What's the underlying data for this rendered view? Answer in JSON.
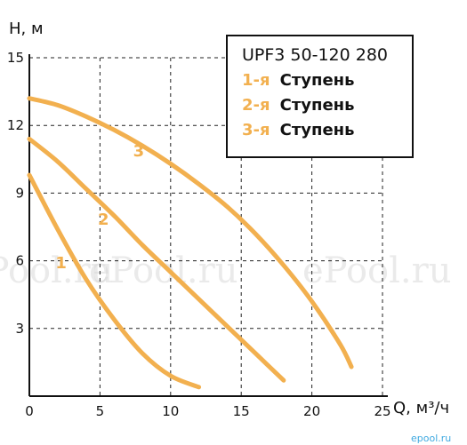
{
  "chart_data": {
    "type": "line",
    "ylabel": "H, м",
    "xlabel": "Q, м³/ч",
    "xlim": [
      0,
      25
    ],
    "ylim": [
      0,
      15
    ],
    "x_ticks": [
      "0",
      "5",
      "10",
      "15",
      "20",
      "25"
    ],
    "y_ticks": [
      "3",
      "6",
      "9",
      "12",
      "15"
    ],
    "grid": true,
    "legend_position": "top-right",
    "legend_title": "UPF3 50-120 280",
    "series": [
      {
        "name": "1-я Ступень",
        "label": "1",
        "number": "1-я",
        "word": "Ступень",
        "x": [
          0,
          2,
          4,
          6,
          8,
          10,
          12
        ],
        "y": [
          9.8,
          7.4,
          5.2,
          3.4,
          1.9,
          0.9,
          0.4
        ]
      },
      {
        "name": "2-я Ступень",
        "label": "2",
        "number": "2-я",
        "word": "Ступень",
        "x": [
          0,
          2,
          4,
          6,
          8,
          10,
          12,
          14,
          16,
          18
        ],
        "y": [
          11.4,
          10.4,
          9.2,
          8.0,
          6.7,
          5.5,
          4.3,
          3.1,
          1.9,
          0.7
        ]
      },
      {
        "name": "3-я Ступень",
        "label": "3",
        "number": "3-я",
        "word": "Ступень",
        "x": [
          0,
          2,
          4,
          6,
          8,
          10,
          12,
          14,
          16,
          18,
          20,
          22,
          22.8
        ],
        "y": [
          13.2,
          12.9,
          12.4,
          11.8,
          11.1,
          10.3,
          9.4,
          8.4,
          7.2,
          5.8,
          4.2,
          2.3,
          1.3
        ]
      }
    ],
    "line_color": "#f2b04f"
  },
  "watermarks": [
    "ePool.ru",
    "ePool.ru",
    "ePool.ru"
  ],
  "corner_watermark": "epool.ru"
}
